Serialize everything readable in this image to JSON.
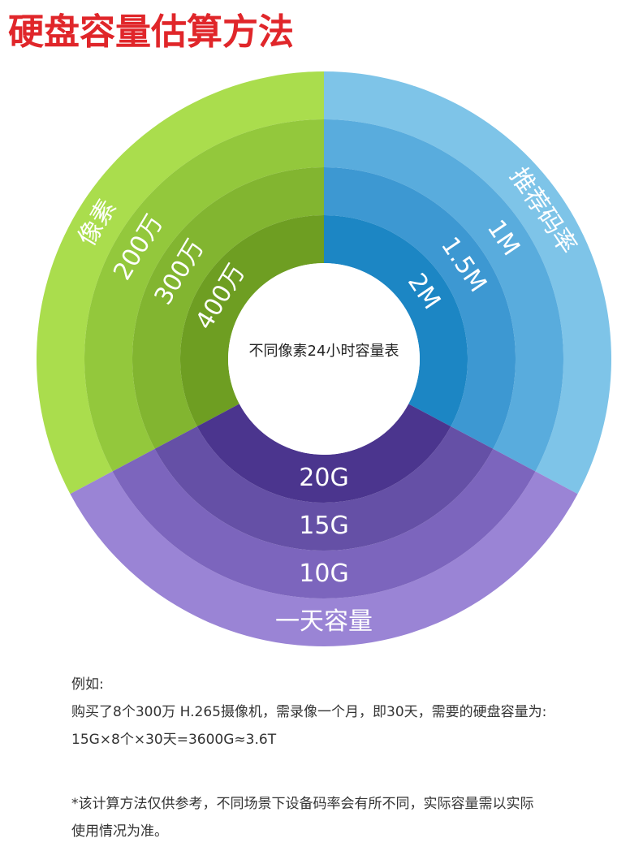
{
  "title": "硬盘容量估算方法",
  "center_label": "不同像素24小时容量表",
  "sectors": [
    {
      "heading": "像素",
      "rings": [
        "200万",
        "300万",
        "400万"
      ]
    },
    {
      "heading": "推荐码率",
      "rings": [
        "1M",
        "1.5M",
        "2M"
      ]
    },
    {
      "heading": "一天容量",
      "rings": [
        "10G",
        "15G",
        "20G"
      ]
    }
  ],
  "example": {
    "lead": "例如:",
    "lines": [
      "购买了8个300万 H.265摄像机，需录像一个月，即30天，需要的硬盘容量为:",
      "15G×8个×30天=3600G≈3.6T"
    ]
  },
  "note": [
    "*该计算方法仅供参考，不同场景下设备码率会有所不同，实际容量需以实际",
    "使用情况为准。"
  ]
}
